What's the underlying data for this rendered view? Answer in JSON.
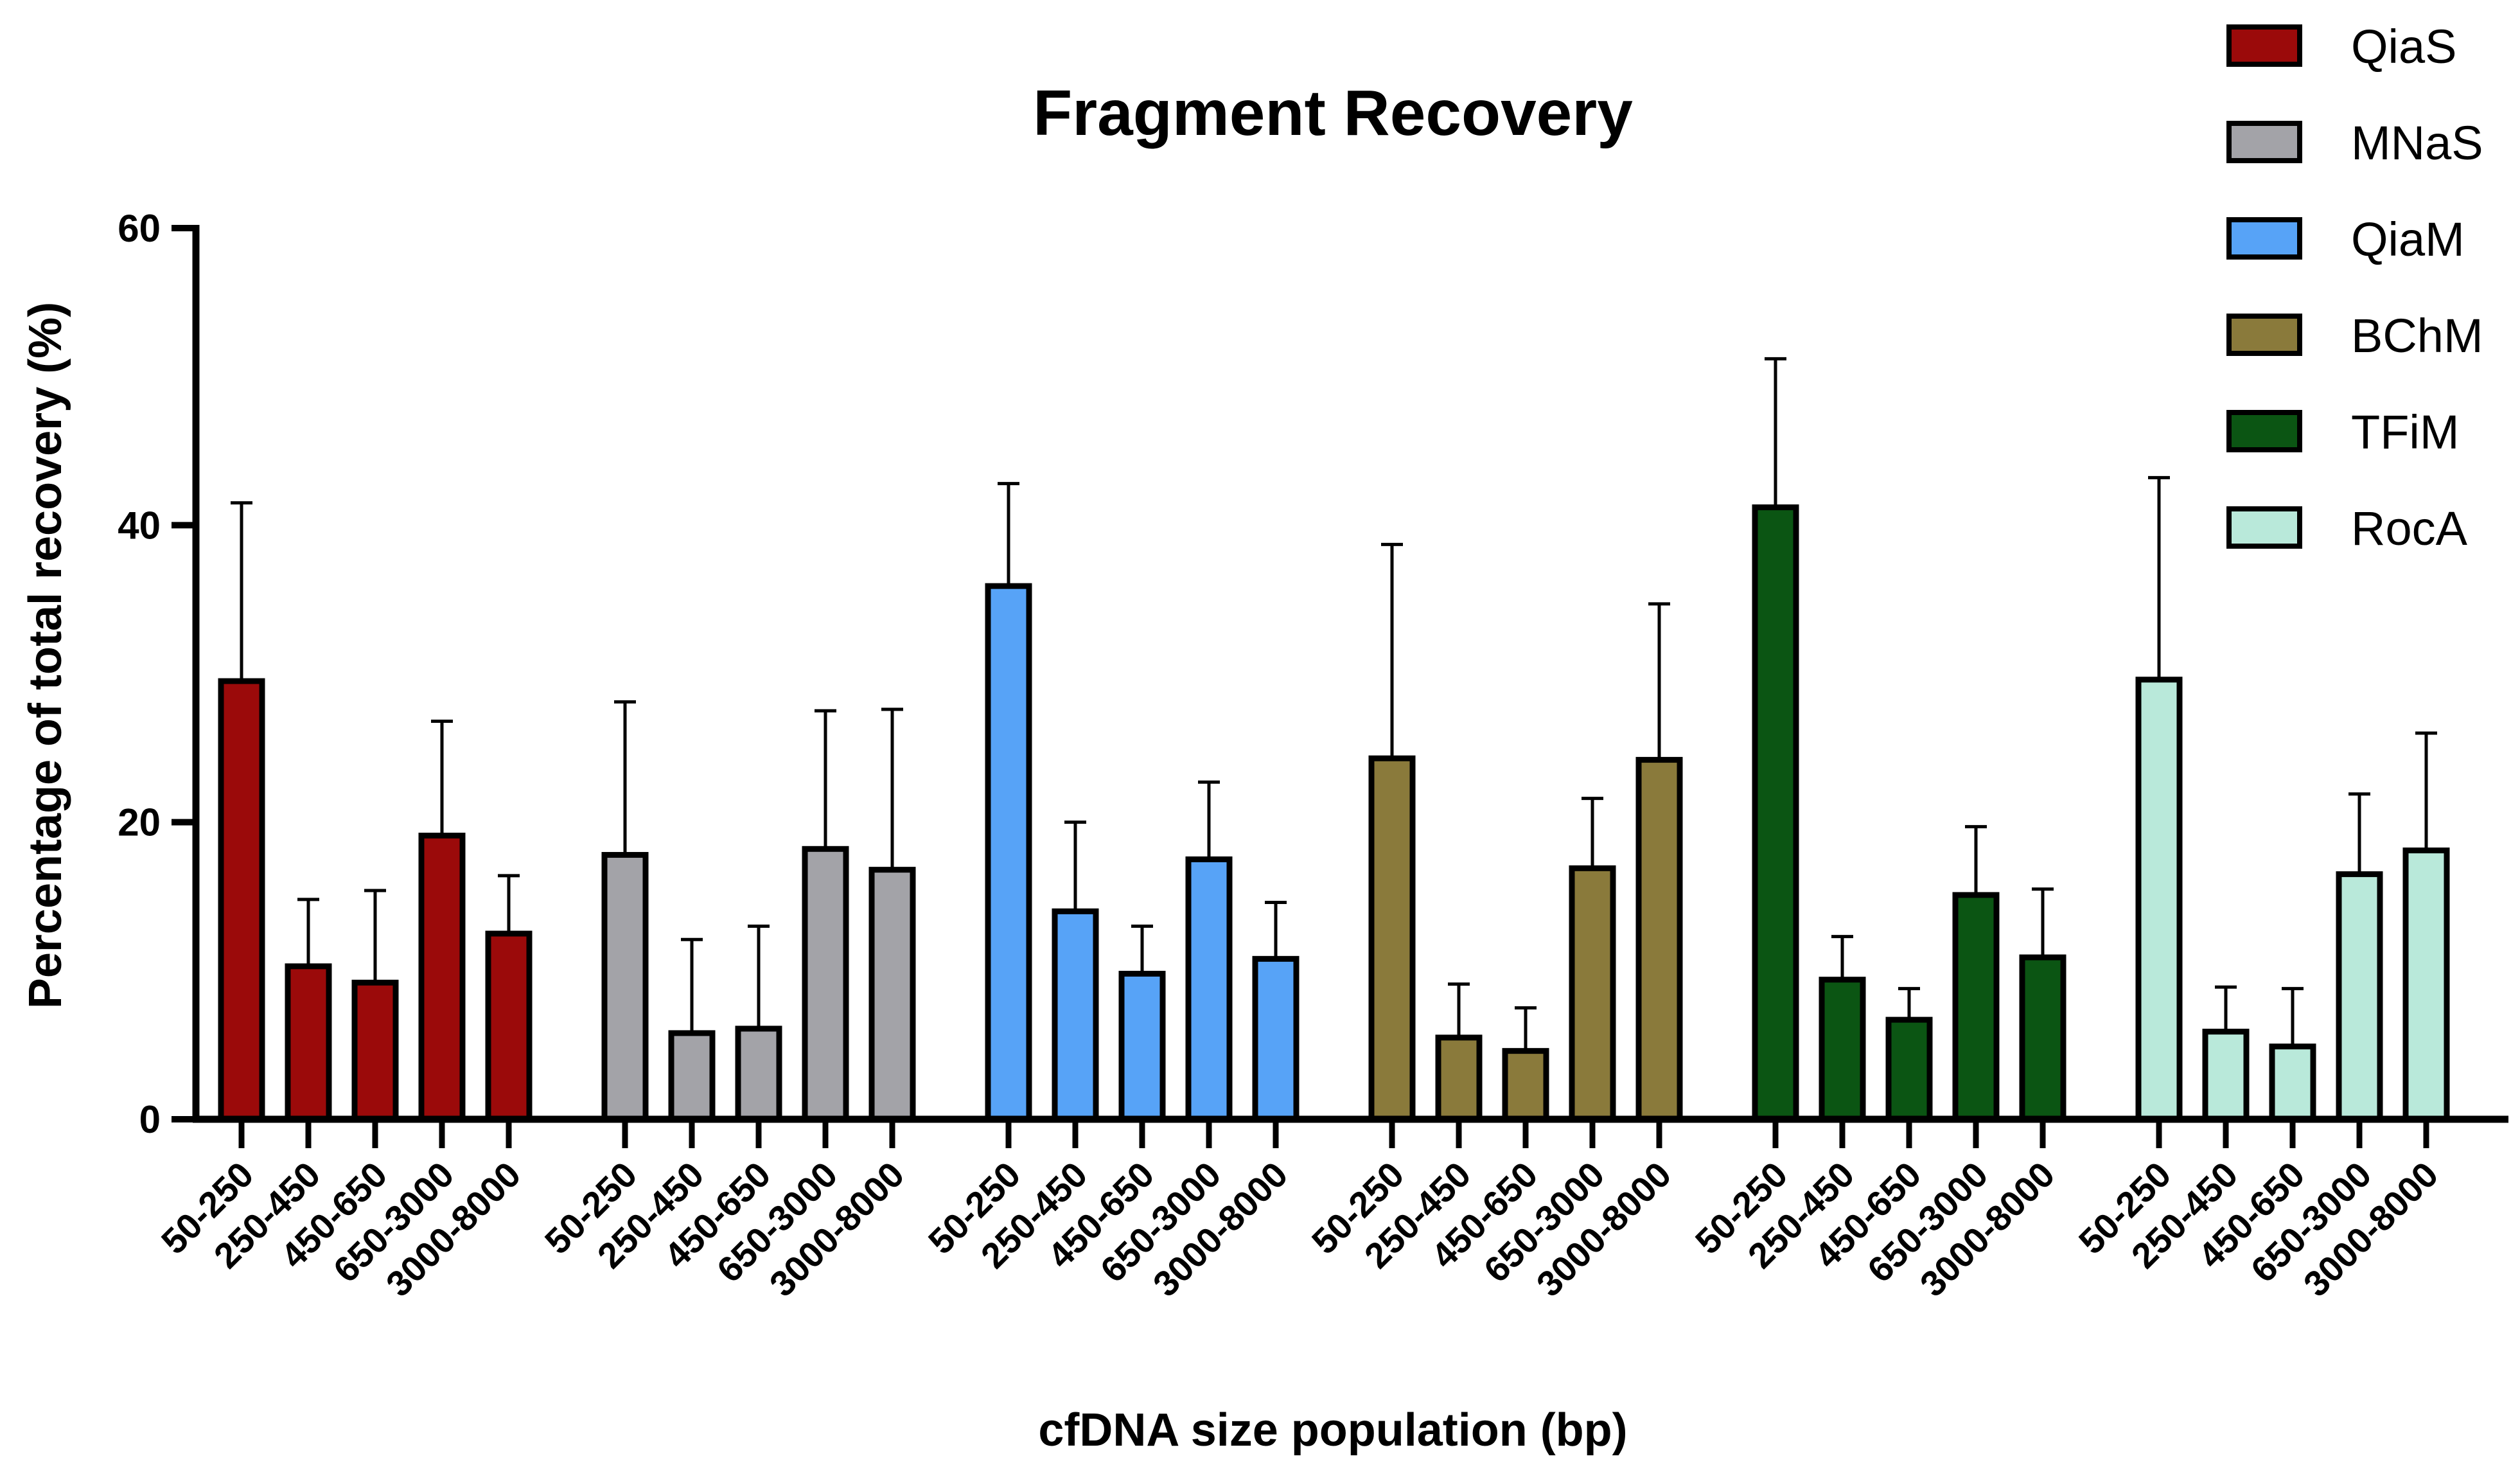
{
  "chart_data": {
    "type": "bar",
    "title": "Fragment Recovery",
    "xlabel": "cfDNA size population (bp)",
    "ylabel": "Percentage of total recovery (%)",
    "ylim": [
      0,
      60
    ],
    "yticks": [
      0,
      20,
      40,
      60
    ],
    "grid": false,
    "legend_position": "top-right",
    "categories": [
      "50-250",
      "250-450",
      "450-650",
      "650-3000",
      "3000-8000"
    ],
    "series": [
      {
        "name": "QiaS",
        "color": "#9b0a0a",
        "values": [
          29.5,
          10.3,
          9.2,
          19.1,
          12.5
        ],
        "errors": [
          12.0,
          4.5,
          6.2,
          7.7,
          3.9
        ]
      },
      {
        "name": "MNaS",
        "color": "#a3a3a8",
        "values": [
          17.8,
          5.8,
          6.1,
          18.2,
          16.8
        ],
        "errors": [
          10.3,
          6.3,
          6.9,
          9.3,
          10.8
        ]
      },
      {
        "name": "QiaM",
        "color": "#57a3f7",
        "values": [
          35.9,
          14.0,
          9.8,
          17.5,
          10.8
        ],
        "errors": [
          6.9,
          6.0,
          3.2,
          5.2,
          3.8
        ]
      },
      {
        "name": "BChM",
        "color": "#8a7a3b",
        "values": [
          24.3,
          5.5,
          4.6,
          16.9,
          24.2
        ],
        "errors": [
          14.4,
          3.6,
          2.9,
          4.7,
          10.5
        ]
      },
      {
        "name": "TFiM",
        "color": "#0b5513",
        "values": [
          41.2,
          9.4,
          6.7,
          15.1,
          10.9
        ],
        "errors": [
          10.0,
          2.9,
          2.1,
          4.6,
          4.6
        ]
      },
      {
        "name": "RocA",
        "color": "#b9e9da",
        "values": [
          29.6,
          5.9,
          4.9,
          16.5,
          18.1
        ],
        "errors": [
          13.6,
          3.0,
          3.9,
          5.4,
          7.9
        ]
      }
    ]
  }
}
